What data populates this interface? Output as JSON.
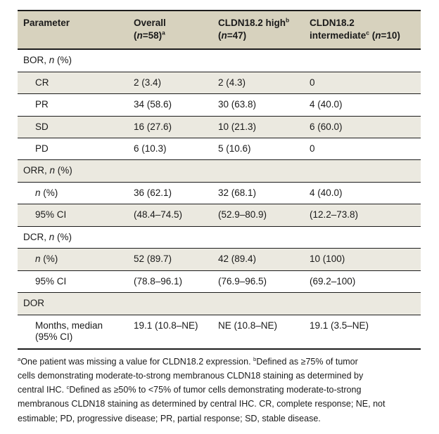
{
  "table": {
    "header": [
      "Parameter",
      "Overall\n(*n*=58)^a^",
      "CLDN18.2 high^b^\n(*n*=47)",
      "CLDN18.2\nintermediate^c^ (*n*=10)"
    ],
    "rows": [
      {
        "type": "section",
        "label": "BOR, *n* (%)",
        "values": [
          "",
          "",
          ""
        ]
      },
      {
        "type": "data",
        "label": "CR",
        "values": [
          "2 (3.4)",
          "2 (4.3)",
          "0"
        ]
      },
      {
        "type": "data",
        "label": "PR",
        "values": [
          "34 (58.6)",
          "30 (63.8)",
          "4 (40.0)"
        ]
      },
      {
        "type": "data",
        "label": "SD",
        "values": [
          "16 (27.6)",
          "10 (21.3)",
          "6 (60.0)"
        ]
      },
      {
        "type": "data",
        "label": "PD",
        "values": [
          "6 (10.3)",
          "5 (10.6)",
          "0"
        ]
      },
      {
        "type": "section",
        "label": "ORR, *n* (%)",
        "values": [
          "",
          "",
          ""
        ]
      },
      {
        "type": "data",
        "label": "*n* (%)",
        "values": [
          "36 (62.1)",
          "32 (68.1)",
          "4 (40.0)"
        ]
      },
      {
        "type": "data",
        "label": "95% CI",
        "values": [
          "(48.4–74.5)",
          "(52.9–80.9)",
          "(12.2–73.8)"
        ]
      },
      {
        "type": "section",
        "label": "DCR, *n* (%)",
        "values": [
          "",
          "",
          ""
        ]
      },
      {
        "type": "data",
        "label": "*n* (%)",
        "values": [
          "52 (89.7)",
          "42 (89.4)",
          "10 (100)"
        ]
      },
      {
        "type": "data",
        "label": "95% CI",
        "values": [
          "(78.8–96.1)",
          "(76.9–96.5)",
          "(69.2–100)"
        ]
      },
      {
        "type": "section",
        "label": "DOR",
        "values": [
          "",
          "",
          ""
        ]
      },
      {
        "type": "data",
        "label": "Months, median\n(95% CI)",
        "values": [
          "19.1 (10.8–NE)",
          "NE (10.8–NE)",
          "19.1 (3.5–NE)"
        ]
      }
    ]
  },
  "footnote": "^a^One patient was missing a value for CLDN18.2 expression. ^b^Defined as ≥75% of tumor\ncells demonstrating moderate-to-strong membranous CLDN18 staining as determined by\ncentral IHC. ^c^Defined as ≥50% to <75% of tumor cells demonstrating moderate-to-strong\nmembranous CLDN18 staining as determined by central IHC. CR, complete response; NE, not\nestimable; PD, progressive disease; PR, partial response; SD, stable disease.",
  "colors": {
    "header_bg": "#d7d2be",
    "row_alt_bg": "#ebe9e0",
    "rule": "#1c1c1c",
    "text": "#1a1a1a"
  }
}
